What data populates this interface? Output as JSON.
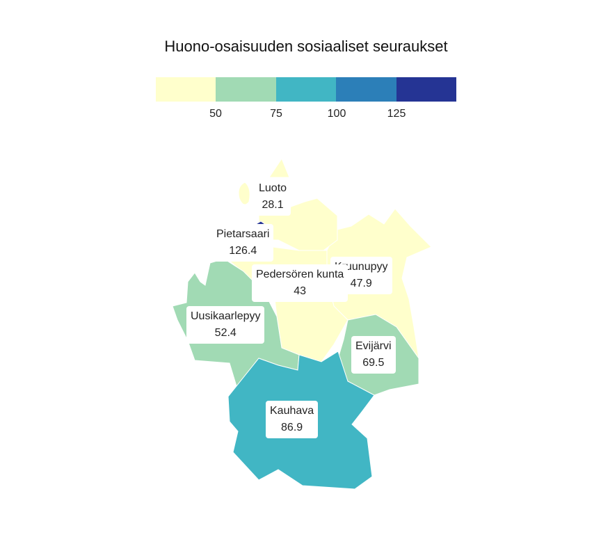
{
  "title": "Huono-osaisuuden sosiaaliset seuraukset",
  "legend": {
    "colors": [
      "#ffffcc",
      "#a1dab4",
      "#41b6c4",
      "#2c7fb8",
      "#253494"
    ],
    "ticks": [
      "50",
      "75",
      "100",
      "125"
    ]
  },
  "regions": [
    {
      "name": "Luoto",
      "value": "28.1",
      "color": "#ffffcc"
    },
    {
      "name": "Pietarsaari",
      "value": "126.4",
      "color": "#253494"
    },
    {
      "name": "Kruunupyy",
      "value": "47.9",
      "color": "#ffffcc"
    },
    {
      "name": "Pedersören kunta",
      "value": "43",
      "color": "#ffffcc"
    },
    {
      "name": "Uusikaarlepyy",
      "value": "52.4",
      "color": "#a1dab4"
    },
    {
      "name": "Evijärvi",
      "value": "69.5",
      "color": "#a1dab4"
    },
    {
      "name": "Kauhava",
      "value": "86.9",
      "color": "#41b6c4"
    }
  ]
}
